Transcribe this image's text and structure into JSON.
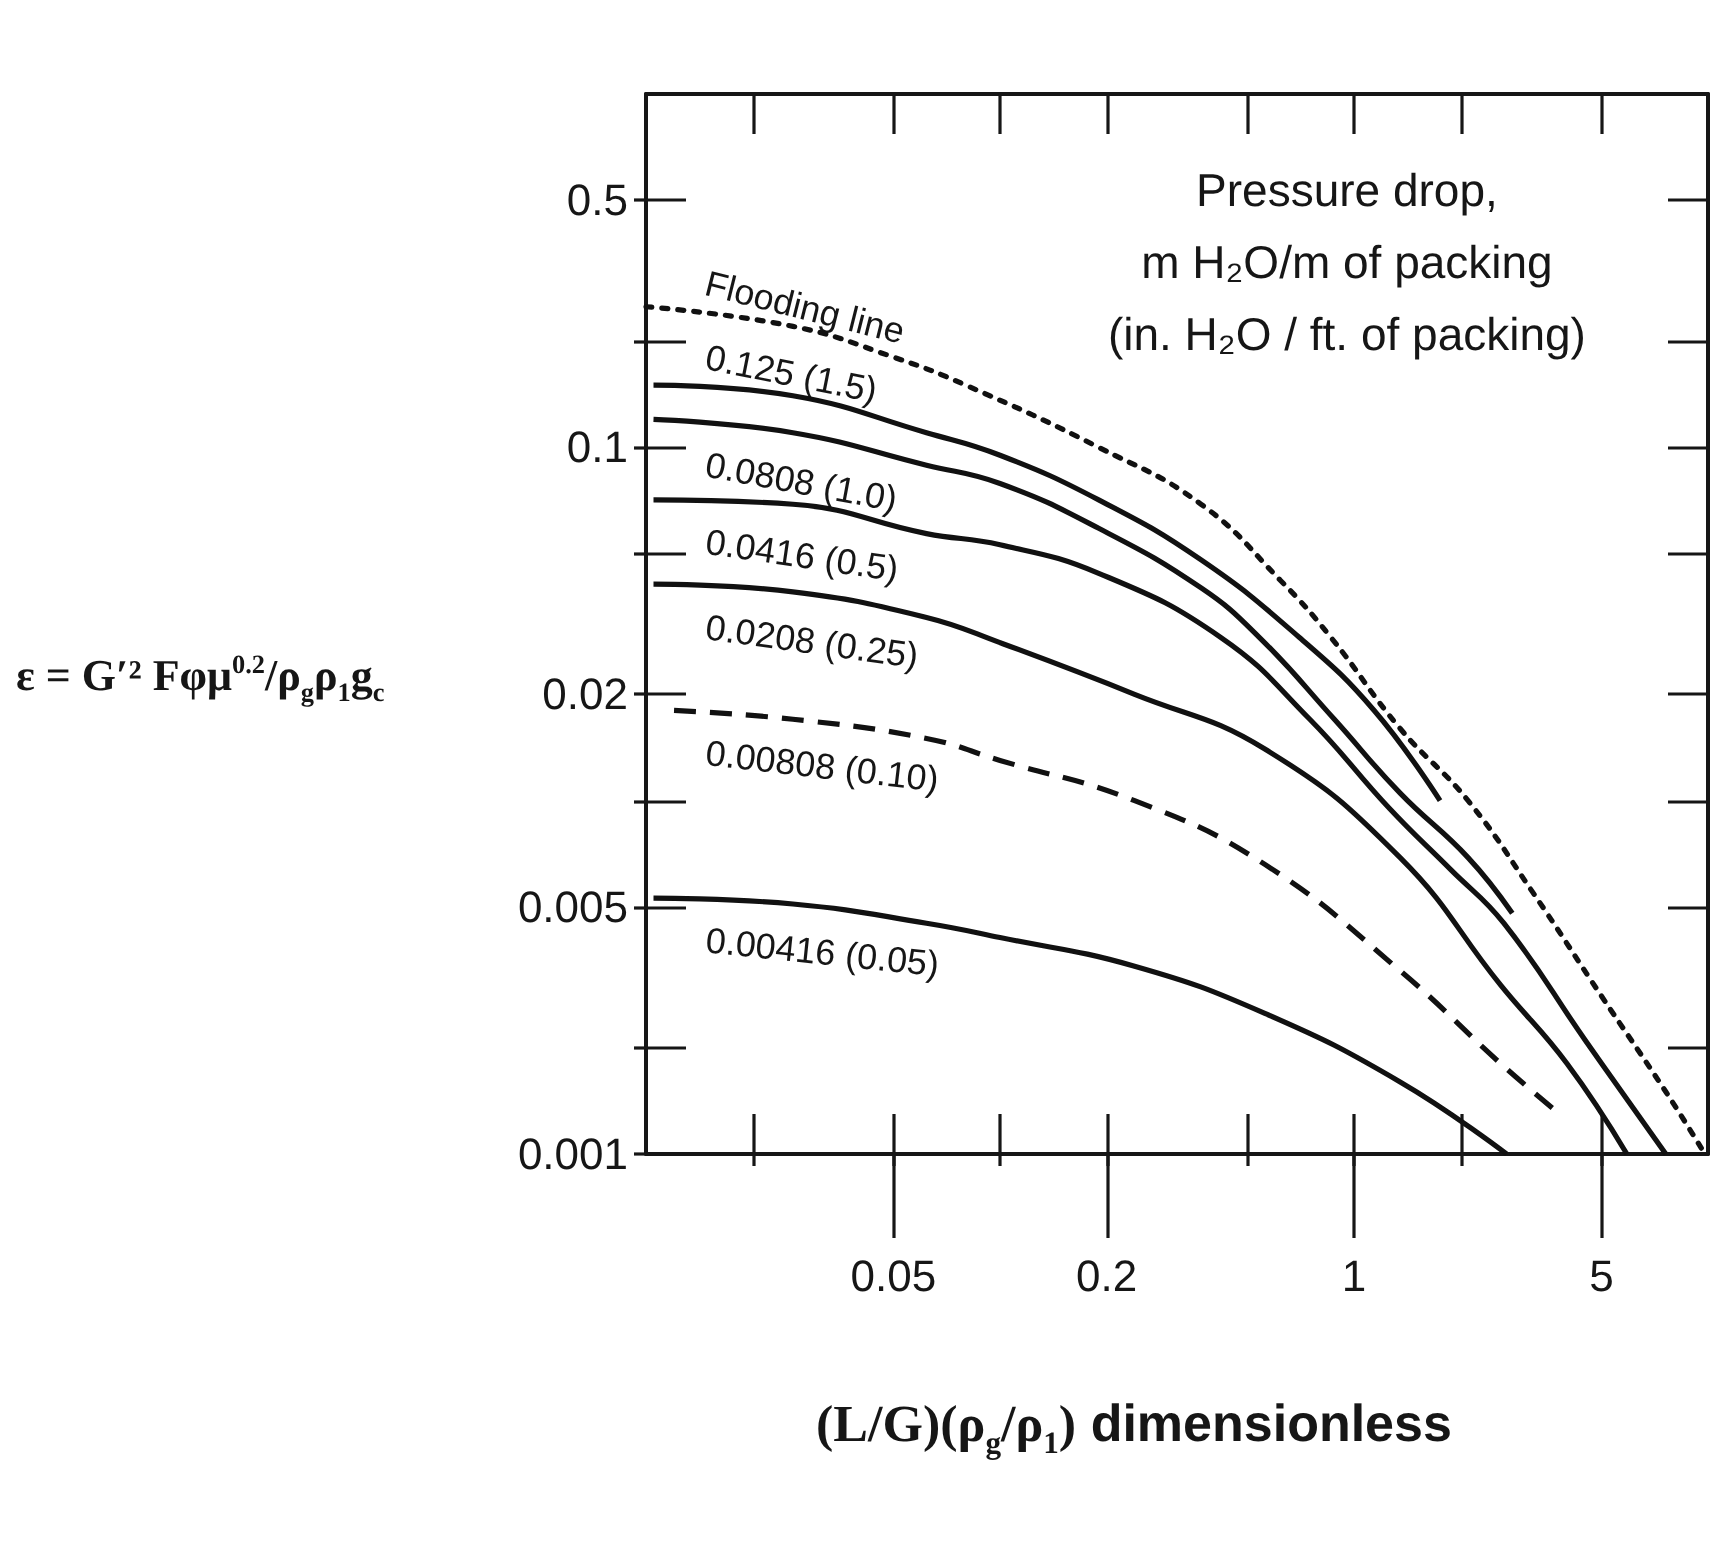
{
  "chart_data": {
    "type": "line",
    "xlabel": "(L/G)(ρ$_{g}$/ρ$_{1}$) dimensionless",
    "ylabel": "ε = G′² Fφμ$^{0.2}$/ρ$_{g}$ρ$_{1}$g$_{c}$",
    "legend_title": "Pressure drop,\nm H₂O/m of packing\n(in. H₂O / ft. of packing)",
    "log": "xy",
    "xlim": [
      0.01,
      10
    ],
    "ylim": [
      0.001,
      1
    ],
    "xticks": [
      {
        "value": 0.02,
        "label": null
      },
      0.05,
      {
        "value": 0.1,
        "label": null
      },
      0.2,
      {
        "value": 0.5,
        "label": null
      },
      1,
      {
        "value": 2,
        "label": null
      },
      5
    ],
    "yticks": [
      0.001,
      {
        "value": 0.002,
        "label": null
      },
      0.005,
      {
        "value": 0.01,
        "label": null
      },
      0.02,
      {
        "value": 0.05,
        "label": null
      },
      0.1,
      {
        "value": 0.2,
        "label": null
      },
      0.5
    ],
    "marker": "none",
    "line_style": "solid",
    "series": [
      {
        "name": "Flooding line",
        "color": "#111111",
        "line_style": "dotted",
        "x": [
          0.01,
          0.026,
          0.05,
          0.08,
          0.19,
          0.37,
          0.62,
          0.86,
          1.35,
          2.1,
          3.2,
          5.0,
          7.6,
          9.8
        ],
        "values": [
          0.25,
          0.22,
          0.18,
          0.15,
          0.1,
          0.069,
          0.042,
          0.029,
          0.016,
          0.01,
          0.0055,
          0.0028,
          0.0015,
          0.001
        ]
      },
      {
        "name": "0.125 (1.5)",
        "color": "#111111",
        "x": [
          0.0105,
          0.026,
          0.062,
          0.1,
          0.19,
          0.37,
          0.7,
          1.14,
          1.75
        ],
        "values": [
          0.15,
          0.14,
          0.11,
          0.095,
          0.071,
          0.048,
          0.029,
          0.018,
          0.01
        ]
      },
      {
        "name": "0.0808 (1.0)",
        "color": "#111111",
        "x": [
          0.0105,
          0.026,
          0.062,
          0.1,
          0.19,
          0.37,
          0.54,
          0.88,
          1.35,
          2.1,
          2.8
        ],
        "values": [
          0.12,
          0.11,
          0.089,
          0.079,
          0.059,
          0.04,
          0.029,
          0.017,
          0.0105,
          0.0069,
          0.0048
        ]
      },
      {
        "name": "0.0416 (0.5)",
        "color": "#111111",
        "x": [
          0.0105,
          0.026,
          0.062,
          0.1,
          0.19,
          0.42,
          0.75,
          1.26,
          1.87,
          2.65,
          4.5,
          7.6
        ],
        "values": [
          0.071,
          0.069,
          0.057,
          0.053,
          0.044,
          0.029,
          0.017,
          0.0095,
          0.0064,
          0.0045,
          0.0021,
          0.001
        ]
      },
      {
        "name": "0.0208 (0.25)",
        "color": "#111111",
        "x": [
          0.0105,
          0.026,
          0.062,
          0.1,
          0.24,
          0.56,
          1.35,
          2.6,
          4.0,
          5.9
        ],
        "values": [
          0.041,
          0.039,
          0.033,
          0.028,
          0.02,
          0.014,
          0.0069,
          0.003,
          0.0018,
          0.001
        ]
      },
      {
        "name": "0.00808 (0.10)",
        "color": "#111111",
        "line_style": "dashed",
        "x": [
          0.012,
          0.026,
          0.062,
          0.1,
          0.24,
          0.56,
          1.35,
          2.6,
          3.8
        ],
        "values": [
          0.018,
          0.017,
          0.015,
          0.013,
          0.01,
          0.0066,
          0.0033,
          0.0018,
          0.0013
        ]
      },
      {
        "name": "0.00416 (0.05)",
        "color": "#111111",
        "x": [
          0.0105,
          0.026,
          0.062,
          0.1,
          0.24,
          0.56,
          1.35,
          2.7
        ],
        "values": [
          0.0053,
          0.0051,
          0.0045,
          0.0041,
          0.0034,
          0.0025,
          0.0016,
          0.001
        ]
      }
    ]
  }
}
